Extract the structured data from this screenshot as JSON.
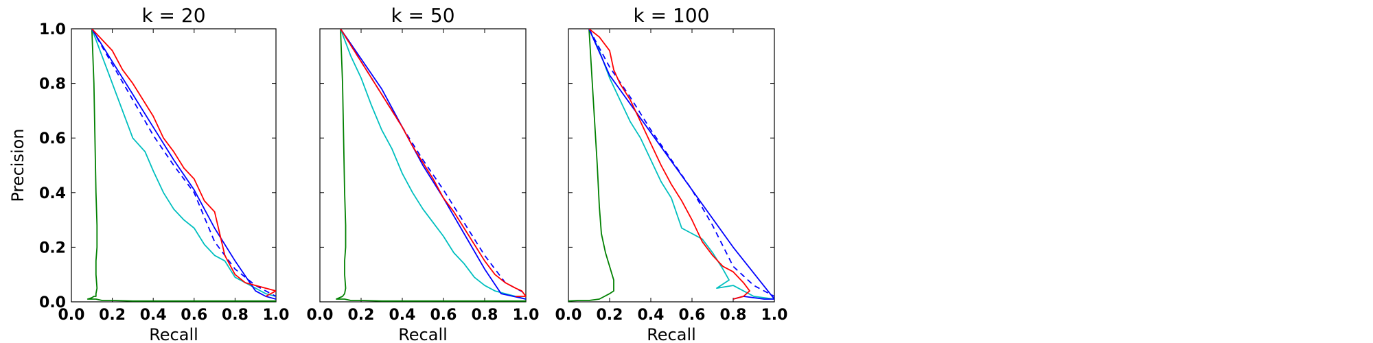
{
  "chart_data": [
    {
      "type": "line",
      "title": "k = 20",
      "xlabel": "Recall",
      "ylabel": "Precision",
      "xlim": [
        0.0,
        1.0
      ],
      "ylim": [
        0.0,
        1.0
      ],
      "xticks": [
        "0.0",
        "0.2",
        "0.4",
        "0.6",
        "0.8",
        "1.0"
      ],
      "yticks": [
        "0.0",
        "0.2",
        "0.4",
        "0.6",
        "0.8",
        "1.0"
      ],
      "grid": false,
      "series": [
        {
          "color": "#008000",
          "style": "solid",
          "x": [
            0.1,
            0.11,
            0.115,
            0.12,
            0.125,
            0.125,
            0.12,
            0.12,
            0.125,
            0.12,
            0.12,
            0.11,
            0.1,
            0.08,
            0.12,
            0.15,
            0.2,
            0.3,
            0.5,
            0.8,
            1.0
          ],
          "y": [
            1.0,
            0.8,
            0.6,
            0.4,
            0.28,
            0.2,
            0.15,
            0.1,
            0.05,
            0.03,
            0.02,
            0.02,
            0.015,
            0.01,
            0.01,
            0.005,
            0.005,
            0.003,
            0.003,
            0.003,
            0.003
          ]
        },
        {
          "color": "#00bfbf",
          "style": "solid",
          "x": [
            0.1,
            0.15,
            0.2,
            0.25,
            0.3,
            0.36,
            0.4,
            0.45,
            0.5,
            0.55,
            0.6,
            0.65,
            0.7,
            0.75,
            0.8,
            0.85,
            0.9,
            0.95,
            1.0
          ],
          "y": [
            1.0,
            0.9,
            0.8,
            0.7,
            0.6,
            0.55,
            0.48,
            0.4,
            0.34,
            0.3,
            0.27,
            0.21,
            0.17,
            0.15,
            0.09,
            0.07,
            0.05,
            0.03,
            0.02
          ]
        },
        {
          "color": "#0000ff",
          "style": "solid",
          "x": [
            0.1,
            0.2,
            0.3,
            0.4,
            0.5,
            0.6,
            0.7,
            0.8,
            0.9,
            0.95,
            1.0
          ],
          "y": [
            1.0,
            0.88,
            0.76,
            0.64,
            0.52,
            0.41,
            0.27,
            0.15,
            0.04,
            0.02,
            0.01
          ]
        },
        {
          "color": "#0000ff",
          "style": "dashed",
          "x": [
            0.1,
            0.2,
            0.3,
            0.4,
            0.5,
            0.6,
            0.7,
            0.8,
            0.9,
            1.0
          ],
          "y": [
            1.0,
            0.87,
            0.74,
            0.61,
            0.5,
            0.4,
            0.22,
            0.12,
            0.06,
            0.02
          ]
        },
        {
          "color": "#ff0000",
          "style": "solid",
          "x": [
            0.1,
            0.15,
            0.2,
            0.25,
            0.3,
            0.35,
            0.4,
            0.45,
            0.5,
            0.55,
            0.6,
            0.65,
            0.7,
            0.75,
            0.8,
            0.85,
            0.9,
            0.95,
            1.0,
            0.95
          ],
          "y": [
            1.0,
            0.96,
            0.92,
            0.85,
            0.8,
            0.74,
            0.68,
            0.6,
            0.55,
            0.49,
            0.45,
            0.37,
            0.33,
            0.17,
            0.1,
            0.07,
            0.06,
            0.05,
            0.04,
            0.02
          ]
        }
      ]
    },
    {
      "type": "line",
      "title": "k = 50",
      "xlabel": "Recall",
      "ylabel": "",
      "xlim": [
        0.0,
        1.0
      ],
      "ylim": [
        0.0,
        1.0
      ],
      "xticks": [
        "0.0",
        "0.2",
        "0.4",
        "0.6",
        "0.8",
        "1.0"
      ],
      "yticks": [],
      "grid": false,
      "series": [
        {
          "color": "#008000",
          "style": "solid",
          "x": [
            0.1,
            0.11,
            0.115,
            0.12,
            0.125,
            0.125,
            0.12,
            0.12,
            0.125,
            0.12,
            0.11,
            0.08,
            0.12,
            0.15,
            0.2,
            0.3,
            0.5,
            0.8,
            1.0
          ],
          "y": [
            1.0,
            0.8,
            0.6,
            0.4,
            0.28,
            0.2,
            0.15,
            0.1,
            0.05,
            0.03,
            0.02,
            0.01,
            0.01,
            0.005,
            0.005,
            0.003,
            0.003,
            0.003,
            0.003
          ]
        },
        {
          "color": "#00bfbf",
          "style": "solid",
          "x": [
            0.1,
            0.15,
            0.2,
            0.25,
            0.3,
            0.35,
            0.4,
            0.45,
            0.5,
            0.55,
            0.6,
            0.65,
            0.7,
            0.75,
            0.8,
            0.85,
            0.9,
            0.95,
            1.0
          ],
          "y": [
            1.0,
            0.9,
            0.82,
            0.72,
            0.63,
            0.56,
            0.47,
            0.4,
            0.34,
            0.29,
            0.24,
            0.18,
            0.14,
            0.09,
            0.06,
            0.04,
            0.03,
            0.02,
            0.01
          ]
        },
        {
          "color": "#0000ff",
          "style": "solid",
          "x": [
            0.1,
            0.2,
            0.3,
            0.4,
            0.5,
            0.6,
            0.7,
            0.8,
            0.88,
            1.0
          ],
          "y": [
            1.0,
            0.89,
            0.78,
            0.64,
            0.5,
            0.38,
            0.25,
            0.12,
            0.03,
            0.01
          ]
        },
        {
          "color": "#0000ff",
          "style": "dashed",
          "x": [
            0.1,
            0.2,
            0.3,
            0.4,
            0.5,
            0.6,
            0.7,
            0.8,
            0.9,
            1.0
          ],
          "y": [
            1.0,
            0.88,
            0.76,
            0.64,
            0.52,
            0.41,
            0.29,
            0.17,
            0.07,
            0.03
          ]
        },
        {
          "color": "#ff0000",
          "style": "solid",
          "x": [
            0.1,
            0.15,
            0.2,
            0.25,
            0.3,
            0.35,
            0.4,
            0.45,
            0.5,
            0.55,
            0.6,
            0.65,
            0.7,
            0.75,
            0.8,
            0.85,
            0.9,
            0.95,
            0.98,
            1.0,
            0.95
          ],
          "y": [
            1.0,
            0.94,
            0.88,
            0.82,
            0.76,
            0.7,
            0.64,
            0.57,
            0.51,
            0.45,
            0.38,
            0.33,
            0.27,
            0.21,
            0.15,
            0.1,
            0.07,
            0.05,
            0.04,
            0.02,
            0.02
          ]
        }
      ]
    },
    {
      "type": "line",
      "title": "k = 100",
      "xlabel": "Recall",
      "ylabel": "",
      "xlim": [
        0.0,
        1.0
      ],
      "ylim": [
        0.0,
        1.0
      ],
      "xticks": [
        "0.0",
        "0.2",
        "0.4",
        "0.6",
        "0.8",
        "1.0"
      ],
      "yticks": [],
      "grid": false,
      "series": [
        {
          "color": "#008000",
          "style": "solid",
          "x": [
            0.1,
            0.12,
            0.14,
            0.15,
            0.16,
            0.18,
            0.2,
            0.22,
            0.22,
            0.2,
            0.15,
            0.1,
            0.05,
            0.0
          ],
          "y": [
            1.0,
            0.75,
            0.5,
            0.35,
            0.25,
            0.18,
            0.13,
            0.08,
            0.04,
            0.03,
            0.01,
            0.005,
            0.005,
            0.003
          ]
        },
        {
          "color": "#00bfbf",
          "style": "solid",
          "x": [
            0.1,
            0.15,
            0.2,
            0.25,
            0.3,
            0.35,
            0.4,
            0.45,
            0.5,
            0.55,
            0.6,
            0.65,
            0.7,
            0.75,
            0.78,
            0.72,
            0.8,
            0.85,
            0.9,
            1.0
          ],
          "y": [
            1.0,
            0.92,
            0.82,
            0.74,
            0.66,
            0.6,
            0.52,
            0.44,
            0.38,
            0.27,
            0.25,
            0.23,
            0.18,
            0.12,
            0.08,
            0.05,
            0.06,
            0.04,
            0.02,
            0.01
          ]
        },
        {
          "color": "#0000ff",
          "style": "solid",
          "x": [
            0.1,
            0.2,
            0.4,
            0.6,
            0.8,
            1.0,
            0.95,
            0.85,
            0.8
          ],
          "y": [
            1.0,
            0.83,
            0.62,
            0.41,
            0.2,
            0.01,
            0.01,
            0.02,
            0.01
          ]
        },
        {
          "color": "#0000ff",
          "style": "dashed",
          "x": [
            0.1,
            0.2,
            0.3,
            0.4,
            0.5,
            0.6,
            0.7,
            0.8,
            0.9,
            1.0
          ],
          "y": [
            1.0,
            0.86,
            0.75,
            0.63,
            0.52,
            0.41,
            0.28,
            0.13,
            0.06,
            0.02
          ]
        },
        {
          "color": "#ff0000",
          "style": "solid",
          "x": [
            0.1,
            0.15,
            0.2,
            0.22,
            0.25,
            0.3,
            0.35,
            0.4,
            0.45,
            0.5,
            0.55,
            0.6,
            0.65,
            0.7,
            0.75,
            0.8,
            0.85,
            0.88,
            0.85,
            0.8
          ],
          "y": [
            1.0,
            0.97,
            0.92,
            0.85,
            0.8,
            0.74,
            0.66,
            0.58,
            0.5,
            0.43,
            0.37,
            0.3,
            0.22,
            0.17,
            0.13,
            0.11,
            0.07,
            0.04,
            0.02,
            0.01
          ]
        }
      ]
    }
  ]
}
